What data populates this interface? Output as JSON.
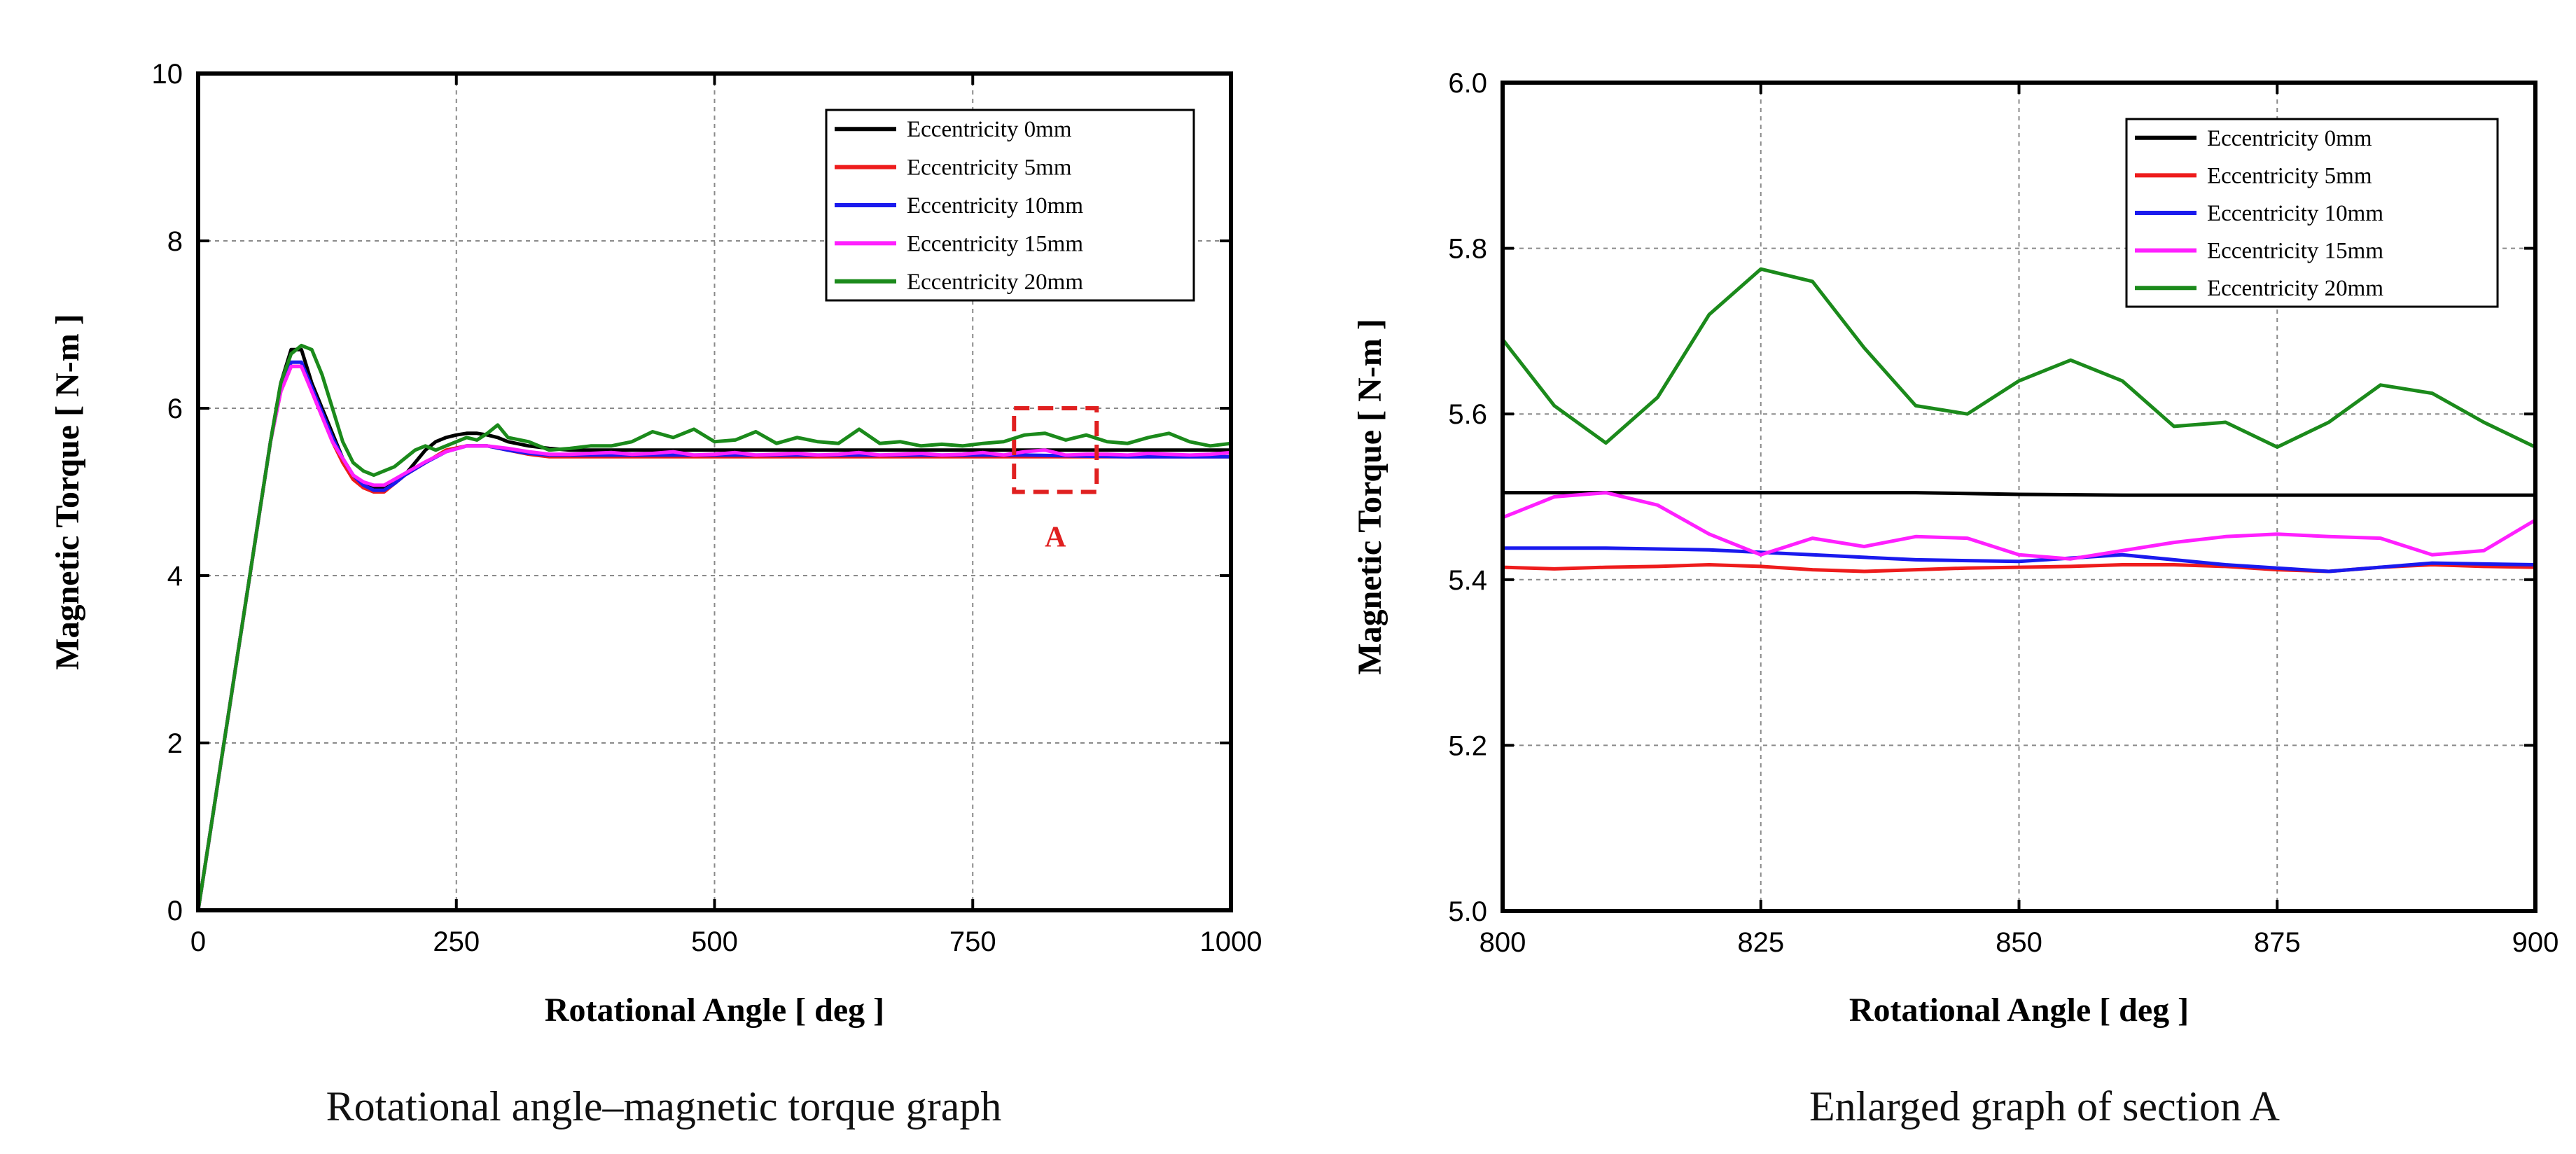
{
  "colors": {
    "eccentricity_0mm": "#000000",
    "eccentricity_5mm": "#ee1c1c",
    "eccentricity_10mm": "#1a1aee",
    "eccentricity_15mm": "#ff20ff",
    "eccentricity_20mm": "#1b8a1b",
    "highlight": "#e02020"
  },
  "chart_data": [
    {
      "type": "line",
      "caption": "Rotational angle–magnetic torque graph",
      "xlabel": "Rotational Angle [ deg ]",
      "ylabel": "Magnetic Torque [ N-m ]",
      "xlim": [
        0,
        1000
      ],
      "ylim": [
        0,
        10
      ],
      "xticks": [
        0,
        250,
        500,
        750,
        1000
      ],
      "yticks": [
        0,
        2,
        4,
        6,
        8,
        10
      ],
      "grid": true,
      "legend_position": "top-right",
      "annotation": {
        "label": "A",
        "x_range": [
          790,
          870
        ],
        "y_range": [
          5.0,
          6.0
        ]
      },
      "series": [
        {
          "name": "Eccentricity 0mm",
          "x": [
            0,
            10,
            20,
            30,
            40,
            50,
            60,
            70,
            80,
            90,
            100,
            110,
            120,
            130,
            140,
            150,
            160,
            170,
            180,
            190,
            200,
            210,
            220,
            230,
            240,
            250,
            260,
            270,
            280,
            290,
            300,
            320,
            340,
            360,
            380,
            400,
            450,
            500,
            550,
            600,
            650,
            700,
            750,
            800,
            850,
            900,
            950,
            1000
          ],
          "y": [
            0,
            0.8,
            1.6,
            2.4,
            3.2,
            4.0,
            4.8,
            5.6,
            6.3,
            6.7,
            6.7,
            6.3,
            6.0,
            5.7,
            5.4,
            5.2,
            5.1,
            5.05,
            5.05,
            5.1,
            5.2,
            5.35,
            5.5,
            5.6,
            5.65,
            5.68,
            5.7,
            5.7,
            5.68,
            5.65,
            5.6,
            5.55,
            5.52,
            5.5,
            5.5,
            5.5,
            5.5,
            5.5,
            5.5,
            5.5,
            5.5,
            5.5,
            5.5,
            5.5,
            5.5,
            5.5,
            5.5,
            5.5
          ]
        },
        {
          "name": "Eccentricity 5mm",
          "x": [
            0,
            10,
            20,
            30,
            40,
            50,
            60,
            70,
            80,
            90,
            100,
            110,
            120,
            130,
            140,
            150,
            160,
            170,
            180,
            190,
            200,
            220,
            240,
            260,
            280,
            300,
            320,
            340,
            360,
            380,
            400,
            450,
            500,
            550,
            600,
            650,
            700,
            750,
            800,
            850,
            900,
            950,
            1000
          ],
          "y": [
            0,
            0.8,
            1.6,
            2.4,
            3.2,
            4.0,
            4.8,
            5.6,
            6.2,
            6.5,
            6.5,
            6.2,
            5.9,
            5.6,
            5.35,
            5.15,
            5.05,
            5.0,
            5.0,
            5.1,
            5.2,
            5.35,
            5.5,
            5.55,
            5.55,
            5.5,
            5.45,
            5.42,
            5.42,
            5.42,
            5.42,
            5.42,
            5.42,
            5.42,
            5.42,
            5.42,
            5.42,
            5.42,
            5.42,
            5.42,
            5.42,
            5.42,
            5.42
          ]
        },
        {
          "name": "Eccentricity 10mm",
          "x": [
            0,
            10,
            20,
            30,
            40,
            50,
            60,
            70,
            80,
            90,
            100,
            110,
            120,
            130,
            140,
            150,
            160,
            170,
            180,
            190,
            200,
            220,
            240,
            260,
            280,
            300,
            320,
            340,
            360,
            380,
            400,
            450,
            500,
            550,
            600,
            650,
            700,
            750,
            800,
            850,
            900,
            950,
            1000
          ],
          "y": [
            0,
            0.8,
            1.6,
            2.4,
            3.2,
            4.0,
            4.8,
            5.6,
            6.25,
            6.55,
            6.55,
            6.25,
            5.95,
            5.65,
            5.4,
            5.2,
            5.08,
            5.02,
            5.02,
            5.1,
            5.2,
            5.35,
            5.48,
            5.55,
            5.55,
            5.5,
            5.46,
            5.44,
            5.44,
            5.44,
            5.44,
            5.44,
            5.44,
            5.44,
            5.44,
            5.44,
            5.44,
            5.44,
            5.44,
            5.43,
            5.42,
            5.42,
            5.42
          ]
        },
        {
          "name": "Eccentricity 15mm",
          "x": [
            0,
            10,
            20,
            30,
            40,
            50,
            60,
            70,
            80,
            90,
            100,
            110,
            120,
            130,
            140,
            150,
            160,
            170,
            180,
            190,
            200,
            220,
            240,
            260,
            280,
            300,
            320,
            340,
            360,
            380,
            400,
            420,
            440,
            460,
            480,
            500,
            520,
            540,
            560,
            580,
            600,
            620,
            640,
            660,
            680,
            700,
            720,
            740,
            760,
            780,
            800,
            820,
            840,
            860,
            880,
            900,
            920,
            940,
            960,
            980,
            1000
          ],
          "y": [
            0,
            0.8,
            1.6,
            2.4,
            3.2,
            4.0,
            4.8,
            5.6,
            6.2,
            6.5,
            6.5,
            6.2,
            5.9,
            5.6,
            5.4,
            5.2,
            5.12,
            5.08,
            5.08,
            5.15,
            5.22,
            5.36,
            5.48,
            5.55,
            5.55,
            5.52,
            5.48,
            5.45,
            5.45,
            5.46,
            5.47,
            5.45,
            5.46,
            5.48,
            5.44,
            5.45,
            5.47,
            5.44,
            5.45,
            5.46,
            5.44,
            5.45,
            5.47,
            5.44,
            5.45,
            5.46,
            5.44,
            5.45,
            5.47,
            5.44,
            5.48,
            5.5,
            5.44,
            5.45,
            5.45,
            5.44,
            5.46,
            5.45,
            5.44,
            5.45,
            5.47
          ]
        },
        {
          "name": "Eccentricity 20mm",
          "x": [
            0,
            10,
            20,
            30,
            40,
            50,
            60,
            70,
            80,
            90,
            100,
            110,
            120,
            130,
            140,
            150,
            160,
            170,
            180,
            190,
            200,
            210,
            220,
            230,
            240,
            250,
            260,
            270,
            280,
            290,
            300,
            320,
            340,
            360,
            380,
            400,
            420,
            440,
            460,
            480,
            500,
            520,
            540,
            560,
            580,
            600,
            620,
            640,
            660,
            680,
            700,
            720,
            740,
            760,
            780,
            800,
            820,
            840,
            860,
            880,
            900,
            920,
            940,
            960,
            980,
            1000
          ],
          "y": [
            0,
            0.8,
            1.6,
            2.4,
            3.2,
            4.0,
            4.8,
            5.6,
            6.3,
            6.65,
            6.75,
            6.7,
            6.4,
            6.0,
            5.6,
            5.35,
            5.25,
            5.2,
            5.25,
            5.3,
            5.4,
            5.5,
            5.55,
            5.5,
            5.55,
            5.6,
            5.65,
            5.62,
            5.7,
            5.8,
            5.65,
            5.6,
            5.5,
            5.52,
            5.55,
            5.55,
            5.6,
            5.72,
            5.65,
            5.75,
            5.6,
            5.62,
            5.72,
            5.58,
            5.65,
            5.6,
            5.58,
            5.75,
            5.58,
            5.6,
            5.55,
            5.57,
            5.55,
            5.58,
            5.6,
            5.68,
            5.7,
            5.62,
            5.68,
            5.6,
            5.58,
            5.65,
            5.7,
            5.6,
            5.55,
            5.58
          ]
        }
      ]
    },
    {
      "type": "line",
      "caption": "Enlarged graph of section A",
      "xlabel": "Rotational Angle [ deg ]",
      "ylabel": "Magnetic Torque [ N-m ]",
      "xlim": [
        800,
        900
      ],
      "ylim": [
        5.0,
        6.0
      ],
      "xticks": [
        800,
        825,
        850,
        875,
        900
      ],
      "yticks": [
        5.0,
        5.2,
        5.4,
        5.6,
        5.8,
        6.0
      ],
      "grid": true,
      "legend_position": "top-right",
      "series": [
        {
          "name": "Eccentricity 0mm",
          "x": [
            800,
            810,
            820,
            830,
            840,
            850,
            860,
            870,
            880,
            890,
            900
          ],
          "y": [
            5.505,
            5.505,
            5.505,
            5.505,
            5.505,
            5.503,
            5.502,
            5.502,
            5.502,
            5.502,
            5.502
          ]
        },
        {
          "name": "Eccentricity 5mm",
          "x": [
            800,
            805,
            810,
            815,
            820,
            825,
            830,
            835,
            840,
            845,
            850,
            855,
            860,
            865,
            870,
            875,
            880,
            885,
            890,
            895,
            900
          ],
          "y": [
            5.415,
            5.413,
            5.415,
            5.416,
            5.418,
            5.416,
            5.412,
            5.41,
            5.412,
            5.414,
            5.415,
            5.416,
            5.418,
            5.418,
            5.416,
            5.412,
            5.41,
            5.415,
            5.418,
            5.416,
            5.415
          ]
        },
        {
          "name": "Eccentricity 10mm",
          "x": [
            800,
            810,
            820,
            830,
            840,
            850,
            855,
            860,
            870,
            880,
            890,
            900
          ],
          "y": [
            5.438,
            5.438,
            5.436,
            5.43,
            5.424,
            5.422,
            5.426,
            5.43,
            5.418,
            5.41,
            5.42,
            5.418
          ]
        },
        {
          "name": "Eccentricity 15mm",
          "x": [
            800,
            805,
            810,
            815,
            820,
            825,
            830,
            835,
            840,
            845,
            850,
            855,
            860,
            865,
            870,
            875,
            880,
            885,
            890,
            895,
            900
          ],
          "y": [
            5.475,
            5.5,
            5.505,
            5.49,
            5.455,
            5.43,
            5.45,
            5.44,
            5.452,
            5.45,
            5.43,
            5.425,
            5.435,
            5.445,
            5.452,
            5.455,
            5.452,
            5.45,
            5.43,
            5.435,
            5.472
          ]
        },
        {
          "name": "Eccentricity 20mm",
          "x": [
            800,
            805,
            810,
            815,
            820,
            825,
            830,
            835,
            840,
            845,
            850,
            855,
            860,
            865,
            870,
            875,
            880,
            885,
            890,
            895,
            900
          ],
          "y": [
            5.69,
            5.61,
            5.565,
            5.62,
            5.72,
            5.775,
            5.76,
            5.68,
            5.61,
            5.6,
            5.64,
            5.665,
            5.64,
            5.585,
            5.59,
            5.56,
            5.59,
            5.635,
            5.625,
            5.59,
            5.56
          ]
        }
      ]
    }
  ]
}
